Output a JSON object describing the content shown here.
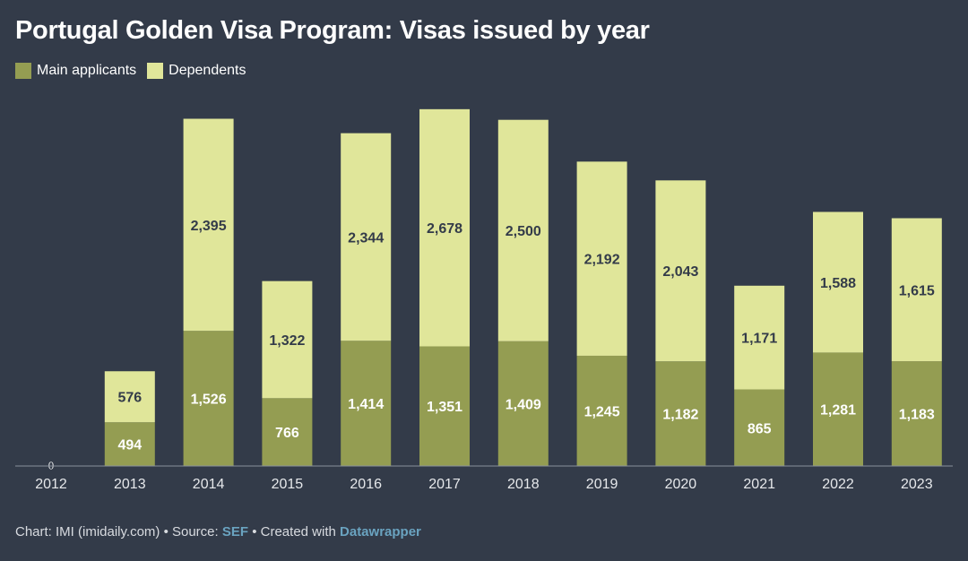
{
  "chart_data": {
    "type": "bar",
    "stacked": true,
    "title": "Portugal Golden Visa Program: Visas issued by year",
    "categories": [
      "2012",
      "2013",
      "2014",
      "2015",
      "2016",
      "2017",
      "2018",
      "2019",
      "2020",
      "2021",
      "2022",
      "2023"
    ],
    "series": [
      {
        "name": "Main applicants",
        "color": "#949d52",
        "values": [
          0,
          494,
          1526,
          766,
          1414,
          1351,
          1409,
          1245,
          1182,
          865,
          1281,
          1183
        ]
      },
      {
        "name": "Dependents",
        "color": "#e0e69a",
        "values": [
          0,
          576,
          2395,
          1322,
          2344,
          2678,
          2500,
          2192,
          2043,
          1171,
          1588,
          1615
        ]
      }
    ],
    "xlabel": "",
    "ylabel": "",
    "ylim": [
      0,
      4250
    ],
    "grid": false,
    "legend": "top-left"
  },
  "footer": {
    "prefix": "Chart: IMI (imidaily.com) • Source: ",
    "source": "SEF",
    "middle": " • Created with ",
    "tool": "Datawrapper"
  }
}
